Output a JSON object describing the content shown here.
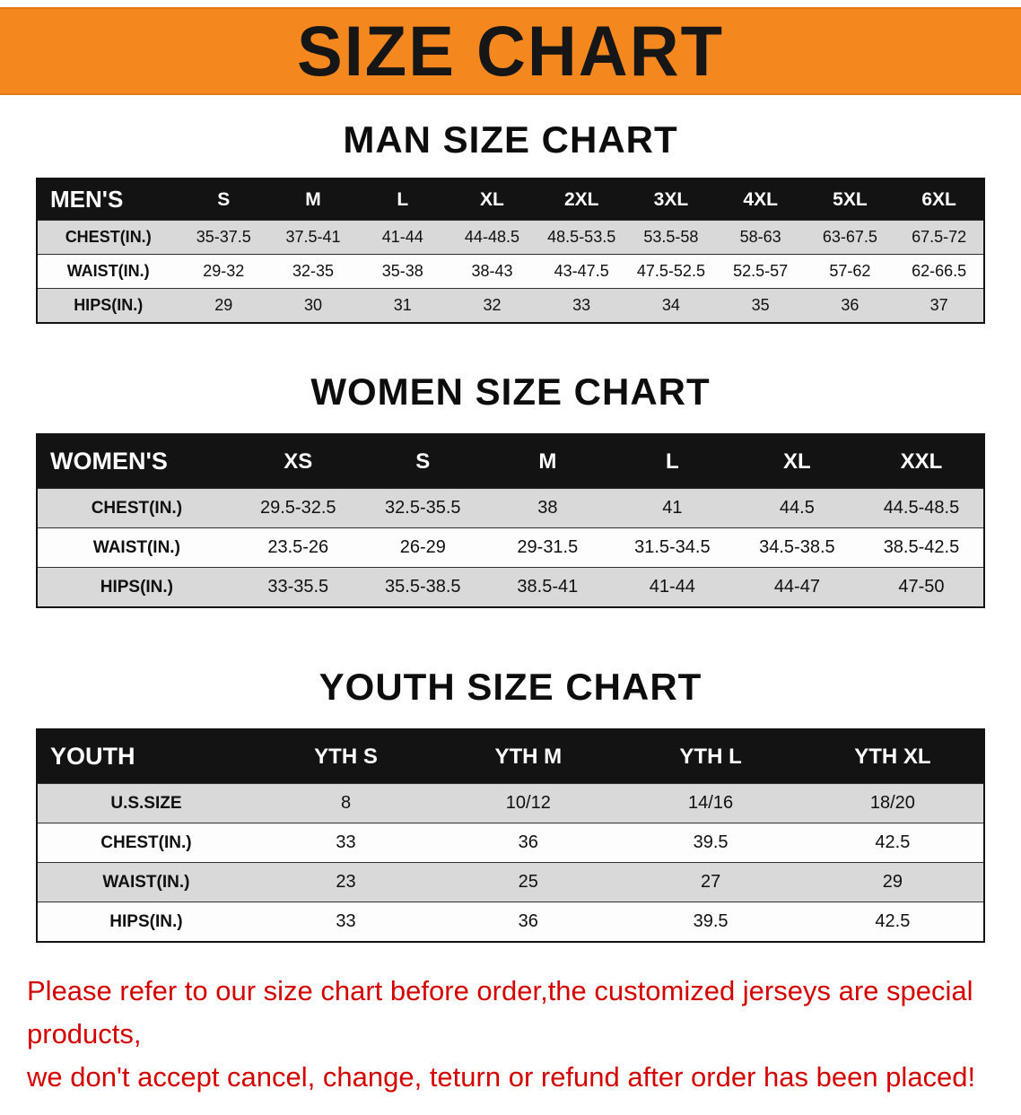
{
  "banner": {
    "title": "SIZE CHART",
    "bg_color": "#F5871F"
  },
  "chart_data": [
    {
      "type": "table",
      "title": "MAN SIZE CHART",
      "columns": [
        "MEN'S",
        "S",
        "M",
        "L",
        "XL",
        "2XL",
        "3XL",
        "4XL",
        "5XL",
        "6XL"
      ],
      "rows": [
        [
          "CHEST(IN.)",
          "35-37.5",
          "37.5-41",
          "41-44",
          "44-48.5",
          "48.5-53.5",
          "53.5-58",
          "58-63",
          "63-67.5",
          "67.5-72"
        ],
        [
          "WAIST(IN.)",
          "29-32",
          "32-35",
          "35-38",
          "38-43",
          "43-47.5",
          "47.5-52.5",
          "52.5-57",
          "57-62",
          "62-66.5"
        ],
        [
          "HIPS(IN.)",
          "29",
          "30",
          "31",
          "32",
          "33",
          "34",
          "35",
          "36",
          "37"
        ]
      ]
    },
    {
      "type": "table",
      "title": "WOMEN SIZE CHART",
      "columns": [
        "WOMEN'S",
        "XS",
        "S",
        "M",
        "L",
        "XL",
        "XXL"
      ],
      "rows": [
        [
          "CHEST(IN.)",
          "29.5-32.5",
          "32.5-35.5",
          "38",
          "41",
          "44.5",
          "44.5-48.5"
        ],
        [
          "WAIST(IN.)",
          "23.5-26",
          "26-29",
          "29-31.5",
          "31.5-34.5",
          "34.5-38.5",
          "38.5-42.5"
        ],
        [
          "HIPS(IN.)",
          "33-35.5",
          "35.5-38.5",
          "38.5-41",
          "41-44",
          "44-47",
          "47-50"
        ]
      ]
    },
    {
      "type": "table",
      "title": "YOUTH SIZE CHART",
      "columns": [
        "YOUTH",
        "YTH S",
        "YTH M",
        "YTH L",
        "YTH XL"
      ],
      "rows": [
        [
          "U.S.SIZE",
          "8",
          "10/12",
          "14/16",
          "18/20"
        ],
        [
          "CHEST(IN.)",
          "33",
          "36",
          "39.5",
          "42.5"
        ],
        [
          "WAIST(IN.)",
          "23",
          "25",
          "27",
          "29"
        ],
        [
          "HIPS(IN.)",
          "33",
          "36",
          "39.5",
          "42.5"
        ]
      ]
    }
  ],
  "footer": {
    "line1": "Please refer to our size chart before order,the customized jerseys are special products,",
    "line2": "we don't accept cancel, change, teturn or refund after order has been placed!",
    "color": "#D40000"
  }
}
